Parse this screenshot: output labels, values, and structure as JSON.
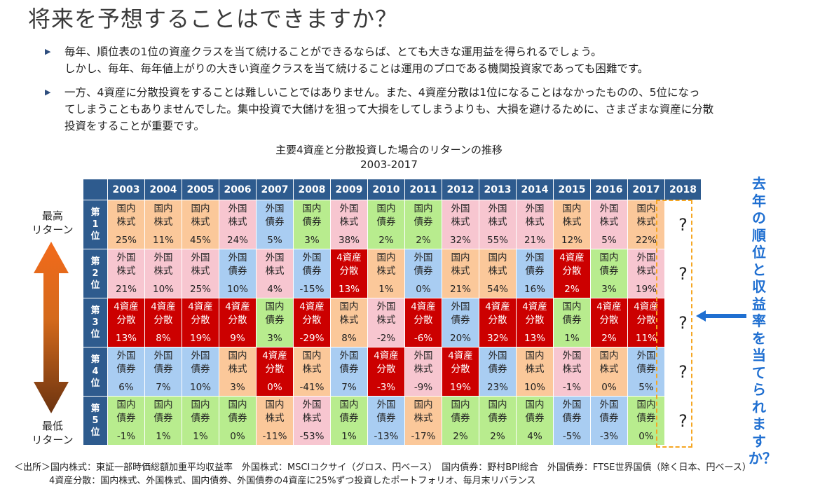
{
  "page": {
    "title": "将来を予想することはできますか？",
    "bullets": [
      {
        "lines": [
          "毎年、順位表の1位の資産クラスを当て続けることができるならば、とても大きな運用益を得られるでしょう。",
          "しかし、毎年、毎年値上がりの大きい資産クラスを当て続けることは運用のプロである機関投資家であっても困難です。"
        ]
      },
      {
        "lines": [
          "一方、4資産に分散投資をすることは難しいことではありません。また、4資産分散は1位になることはなかったものの、5位になっ",
          "てしまうこともありませんでした。集中投資で大儲けを狙って大損をしてしまうよりも、大損を避けるために、さまざまな資産に分散",
          "投資をすることが重要です。"
        ]
      }
    ],
    "side_label_top": "最高\nリターン",
    "side_label_bottom": "最低\nリターン",
    "right_callout": "去年の順位と収益率を当てられますか？",
    "source_line1": "＜出所＞国内株式：東証一部時価総額加重平均収益率　外国株式：MSCIコクサイ（グロス、円ベース）　国内債券：野村BPI総合　外国債券：FTSE世界国債（除く日本、円ベース）",
    "source_line2": "4資産分散：国内株式、外国株式、国内債券、外国債券の4資産に25%ずつ投資したポートフォリオ、毎月末リバランス"
  },
  "chart_data": {
    "type": "table",
    "title": "主要4資産と分散投資した場合のリターンの推移",
    "subtitle": "2003-2017",
    "years": [
      "2003",
      "2004",
      "2005",
      "2006",
      "2007",
      "2008",
      "2009",
      "2010",
      "2011",
      "2012",
      "2013",
      "2014",
      "2015",
      "2016",
      "2017",
      "2018"
    ],
    "ranks": [
      "第\n1\n位",
      "第\n2\n位",
      "第\n3\n位",
      "第\n4\n位",
      "第\n5\n位"
    ],
    "unknown_mark": "?",
    "assets": {
      "dj": {
        "name": "国内\n株式",
        "color": "#fbc89a"
      },
      "fj": {
        "name": "外国\n株式",
        "color": "#f7c6d0"
      },
      "db": {
        "name": "国内\n債券",
        "color": "#b8ec8e"
      },
      "fb": {
        "name": "外国\n債券",
        "color": "#a9cdf2"
      },
      "dv": {
        "name": "4資産\n分散",
        "color": "#cc0000"
      }
    },
    "rows": [
      [
        [
          "dj",
          "25%"
        ],
        [
          "dj",
          "11%"
        ],
        [
          "dj",
          "45%"
        ],
        [
          "fj",
          "24%"
        ],
        [
          "fb",
          "5%"
        ],
        [
          "db",
          "3%"
        ],
        [
          "fj",
          "38%"
        ],
        [
          "db",
          "2%"
        ],
        [
          "db",
          "2%"
        ],
        [
          "fj",
          "32%"
        ],
        [
          "fj",
          "55%"
        ],
        [
          "fj",
          "21%"
        ],
        [
          "dj",
          "12%"
        ],
        [
          "fj",
          "5%"
        ],
        [
          "dj",
          "22%"
        ]
      ],
      [
        [
          "fj",
          "21%"
        ],
        [
          "fj",
          "10%"
        ],
        [
          "fj",
          "25%"
        ],
        [
          "fb",
          "10%"
        ],
        [
          "fj",
          "4%"
        ],
        [
          "fb",
          "-15%"
        ],
        [
          "dv",
          "13%"
        ],
        [
          "dj",
          "1%"
        ],
        [
          "fb",
          "0%"
        ],
        [
          "dj",
          "21%"
        ],
        [
          "dj",
          "54%"
        ],
        [
          "fb",
          "16%"
        ],
        [
          "dv",
          "2%"
        ],
        [
          "db",
          "3%"
        ],
        [
          "fj",
          "19%"
        ]
      ],
      [
        [
          "dv",
          "13%"
        ],
        [
          "dv",
          "8%"
        ],
        [
          "dv",
          "19%"
        ],
        [
          "dv",
          "9%"
        ],
        [
          "db",
          "3%"
        ],
        [
          "dv",
          "-29%"
        ],
        [
          "dj",
          "8%"
        ],
        [
          "fj",
          "-2%"
        ],
        [
          "dv",
          "-6%"
        ],
        [
          "fb",
          "20%"
        ],
        [
          "dv",
          "32%"
        ],
        [
          "dv",
          "13%"
        ],
        [
          "db",
          "1%"
        ],
        [
          "dv",
          "2%"
        ],
        [
          "dv",
          "11%"
        ]
      ],
      [
        [
          "fb",
          "6%"
        ],
        [
          "fb",
          "7%"
        ],
        [
          "fb",
          "10%"
        ],
        [
          "dj",
          "3%"
        ],
        [
          "dv",
          "0%"
        ],
        [
          "dj",
          "-41%"
        ],
        [
          "fb",
          "7%"
        ],
        [
          "dv",
          "-3%"
        ],
        [
          "fj",
          "-9%"
        ],
        [
          "dv",
          "19%"
        ],
        [
          "fb",
          "23%"
        ],
        [
          "dj",
          "10%"
        ],
        [
          "fj",
          "-1%"
        ],
        [
          "dj",
          "0%"
        ],
        [
          "fb",
          "5%"
        ]
      ],
      [
        [
          "db",
          "-1%"
        ],
        [
          "db",
          "1%"
        ],
        [
          "db",
          "1%"
        ],
        [
          "db",
          "0%"
        ],
        [
          "dj",
          "-11%"
        ],
        [
          "fj",
          "-53%"
        ],
        [
          "db",
          "1%"
        ],
        [
          "fb",
          "-13%"
        ],
        [
          "dj",
          "-17%"
        ],
        [
          "db",
          "2%"
        ],
        [
          "db",
          "2%"
        ],
        [
          "db",
          "4%"
        ],
        [
          "fb",
          "-5%"
        ],
        [
          "fb",
          "-3%"
        ],
        [
          "db",
          "0%"
        ]
      ]
    ]
  }
}
